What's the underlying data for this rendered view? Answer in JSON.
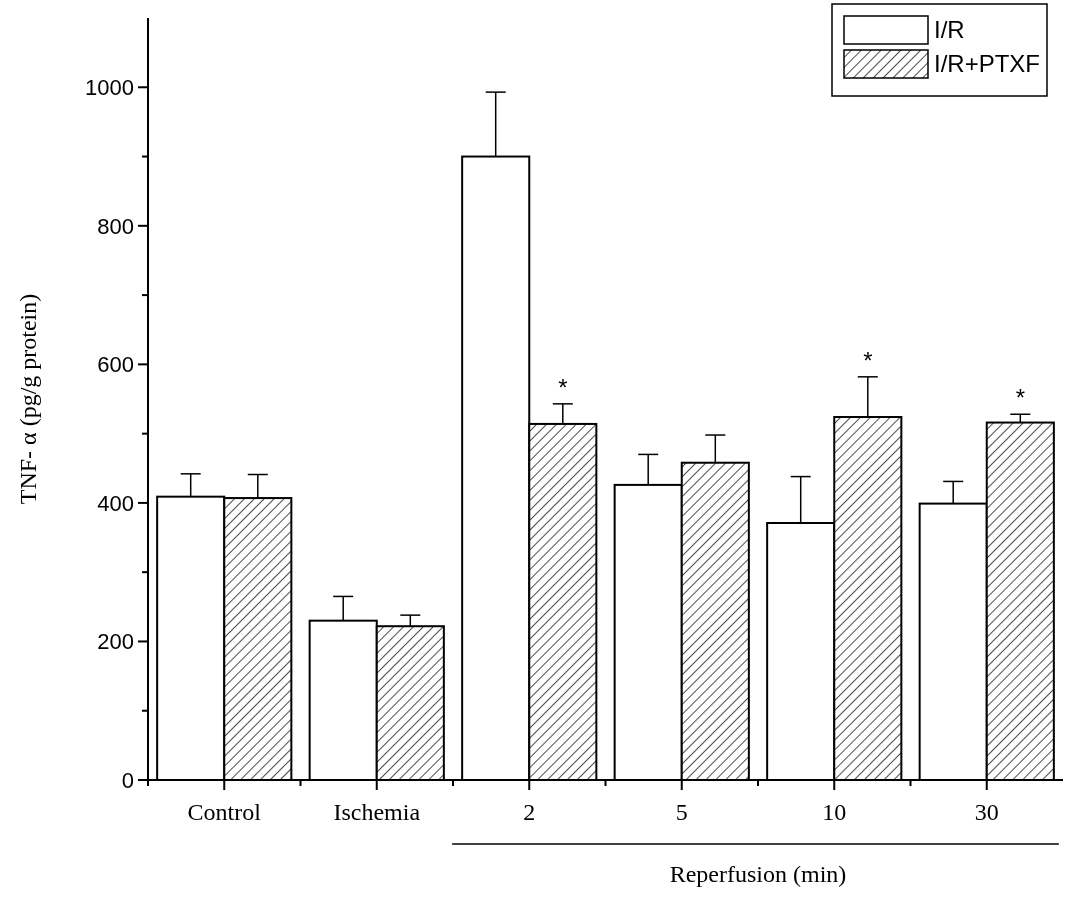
{
  "chart_data": {
    "type": "bar",
    "ylabel": "TNF- α (pg/g protein)",
    "categories": [
      "Control",
      "Ischemia",
      "2",
      "5",
      "10",
      "30"
    ],
    "series": [
      {
        "name": "I/R",
        "color": "#ffffff",
        "values": [
          409,
          230,
          900,
          426,
          371,
          399
        ],
        "errors": [
          [
            409,
            442
          ],
          [
            230,
            265
          ],
          [
            900,
            993
          ],
          [
            426,
            470
          ],
          [
            371,
            438
          ],
          [
            399,
            431
          ]
        ]
      },
      {
        "name": "I/R+PTXF",
        "color": "#000000",
        "values": [
          407,
          222,
          514,
          458,
          524,
          516
        ],
        "errors": [
          [
            407,
            441
          ],
          [
            222,
            238
          ],
          [
            514,
            543
          ],
          [
            458,
            498
          ],
          [
            524,
            582
          ],
          [
            516,
            528
          ]
        ]
      }
    ],
    "ylim": [
      0,
      1100
    ],
    "yticks": [
      0,
      {
        "value": 100,
        "label": null
      },
      200,
      {
        "value": 300,
        "label": null
      },
      400,
      {
        "value": 500,
        "label": null
      },
      600,
      {
        "value": 700,
        "label": null
      },
      800,
      {
        "value": 900,
        "label": null
      },
      1000
    ],
    "annotations": [
      {
        "text": "*",
        "x": "2",
        "y": 514
      },
      {
        "text": "*",
        "x": "10",
        "y": 524
      },
      {
        "text": "*",
        "x": "30",
        "y": 516
      },
      "Reperfusion (min)"
    ],
    "grid": false,
    "legend": "top right"
  }
}
